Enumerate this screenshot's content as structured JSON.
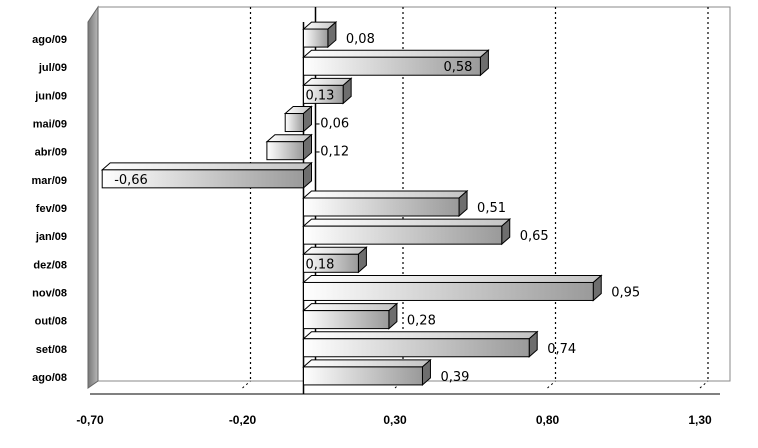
{
  "chart_data": {
    "type": "bar",
    "orientation": "horizontal",
    "title": "",
    "xlabel": "",
    "ylabel": "",
    "categories": [
      "ago/08",
      "set/08",
      "out/08",
      "nov/08",
      "dez/08",
      "jan/09",
      "fev/09",
      "mar/09",
      "abr/09",
      "mai/09",
      "jun/09",
      "jul/09",
      "ago/09"
    ],
    "values": [
      0.39,
      0.74,
      0.28,
      0.95,
      0.18,
      0.65,
      0.51,
      -0.66,
      -0.12,
      -0.06,
      0.13,
      0.58,
      0.08
    ],
    "value_labels": [
      "0,39",
      "0,74",
      "0,28",
      "0,95",
      "0,18",
      "0,65",
      "0,51",
      "-0,66",
      "-0,12",
      "-0,06",
      "0,13",
      "0,58",
      "0,08"
    ],
    "xlim": [
      -0.7,
      1.3
    ],
    "xticks": [
      -0.7,
      -0.2,
      0.3,
      0.8,
      1.3
    ],
    "xtick_labels": [
      "-0,70",
      "-0,20",
      "0,30",
      "0,80",
      "1,30"
    ],
    "grid": "dotted vertical",
    "legend": "none",
    "style": "3d",
    "colors": {
      "bar_dark": "#9a9a9a",
      "bar_light": "#ffffff",
      "wall": "#999999"
    }
  }
}
